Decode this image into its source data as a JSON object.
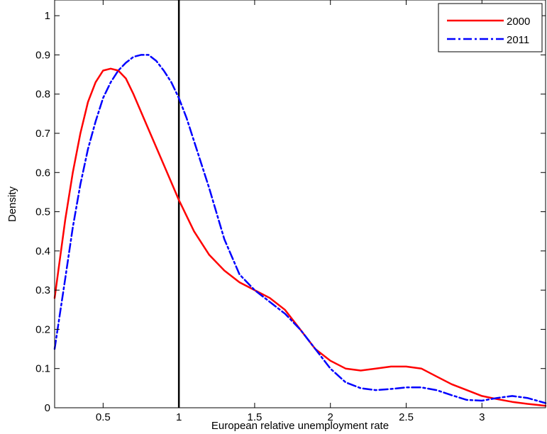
{
  "chart_data": {
    "type": "line",
    "title": "",
    "xlabel": "European relative unemployment rate",
    "ylabel": "Density",
    "xlim": [
      0.18,
      3.42
    ],
    "ylim": [
      0,
      1.04
    ],
    "xticks": [
      0.5,
      1,
      1.5,
      2,
      2.5,
      3
    ],
    "xtick_labels": [
      "0.5",
      "1",
      "1.5",
      "2",
      "2.5",
      "3"
    ],
    "yticks": [
      0,
      0.1,
      0.2,
      0.3,
      0.4,
      0.5,
      0.6,
      0.7,
      0.8,
      0.9,
      1
    ],
    "ytick_labels": [
      "0",
      "0.1",
      "0.2",
      "0.3",
      "0.4",
      "0.5",
      "0.6",
      "0.7",
      "0.8",
      "0.9",
      "1"
    ],
    "grid": false,
    "legend_position": "top-right",
    "reference_line": {
      "x": 1,
      "color": "#000000"
    },
    "series": [
      {
        "name": "2000",
        "color": "#ff0000",
        "style": "solid",
        "x": [
          0.18,
          0.25,
          0.3,
          0.35,
          0.4,
          0.45,
          0.5,
          0.55,
          0.6,
          0.65,
          0.7,
          0.8,
          0.9,
          1.0,
          1.1,
          1.2,
          1.3,
          1.4,
          1.5,
          1.6,
          1.7,
          1.8,
          1.9,
          2.0,
          2.1,
          2.2,
          2.3,
          2.4,
          2.5,
          2.6,
          2.7,
          2.8,
          2.9,
          3.0,
          3.1,
          3.2,
          3.3,
          3.42
        ],
        "y": [
          0.28,
          0.48,
          0.6,
          0.7,
          0.78,
          0.83,
          0.86,
          0.865,
          0.86,
          0.84,
          0.8,
          0.71,
          0.62,
          0.53,
          0.45,
          0.39,
          0.35,
          0.32,
          0.3,
          0.28,
          0.25,
          0.2,
          0.15,
          0.12,
          0.1,
          0.095,
          0.1,
          0.105,
          0.105,
          0.1,
          0.08,
          0.06,
          0.045,
          0.03,
          0.022,
          0.015,
          0.01,
          0.005
        ]
      },
      {
        "name": "2011",
        "color": "#0000ff",
        "style": "dashdot",
        "x": [
          0.18,
          0.25,
          0.3,
          0.35,
          0.4,
          0.45,
          0.5,
          0.55,
          0.6,
          0.65,
          0.7,
          0.75,
          0.8,
          0.85,
          0.9,
          0.95,
          1.0,
          1.05,
          1.1,
          1.2,
          1.3,
          1.4,
          1.5,
          1.6,
          1.7,
          1.8,
          1.9,
          2.0,
          2.1,
          2.2,
          2.3,
          2.4,
          2.5,
          2.6,
          2.7,
          2.8,
          2.9,
          3.0,
          3.1,
          3.2,
          3.3,
          3.42
        ],
        "y": [
          0.15,
          0.33,
          0.46,
          0.57,
          0.66,
          0.73,
          0.79,
          0.83,
          0.86,
          0.88,
          0.895,
          0.9,
          0.9,
          0.885,
          0.86,
          0.83,
          0.79,
          0.74,
          0.68,
          0.56,
          0.43,
          0.34,
          0.3,
          0.27,
          0.24,
          0.2,
          0.15,
          0.1,
          0.065,
          0.05,
          0.045,
          0.048,
          0.052,
          0.052,
          0.045,
          0.032,
          0.02,
          0.018,
          0.025,
          0.03,
          0.025,
          0.012
        ]
      }
    ]
  }
}
